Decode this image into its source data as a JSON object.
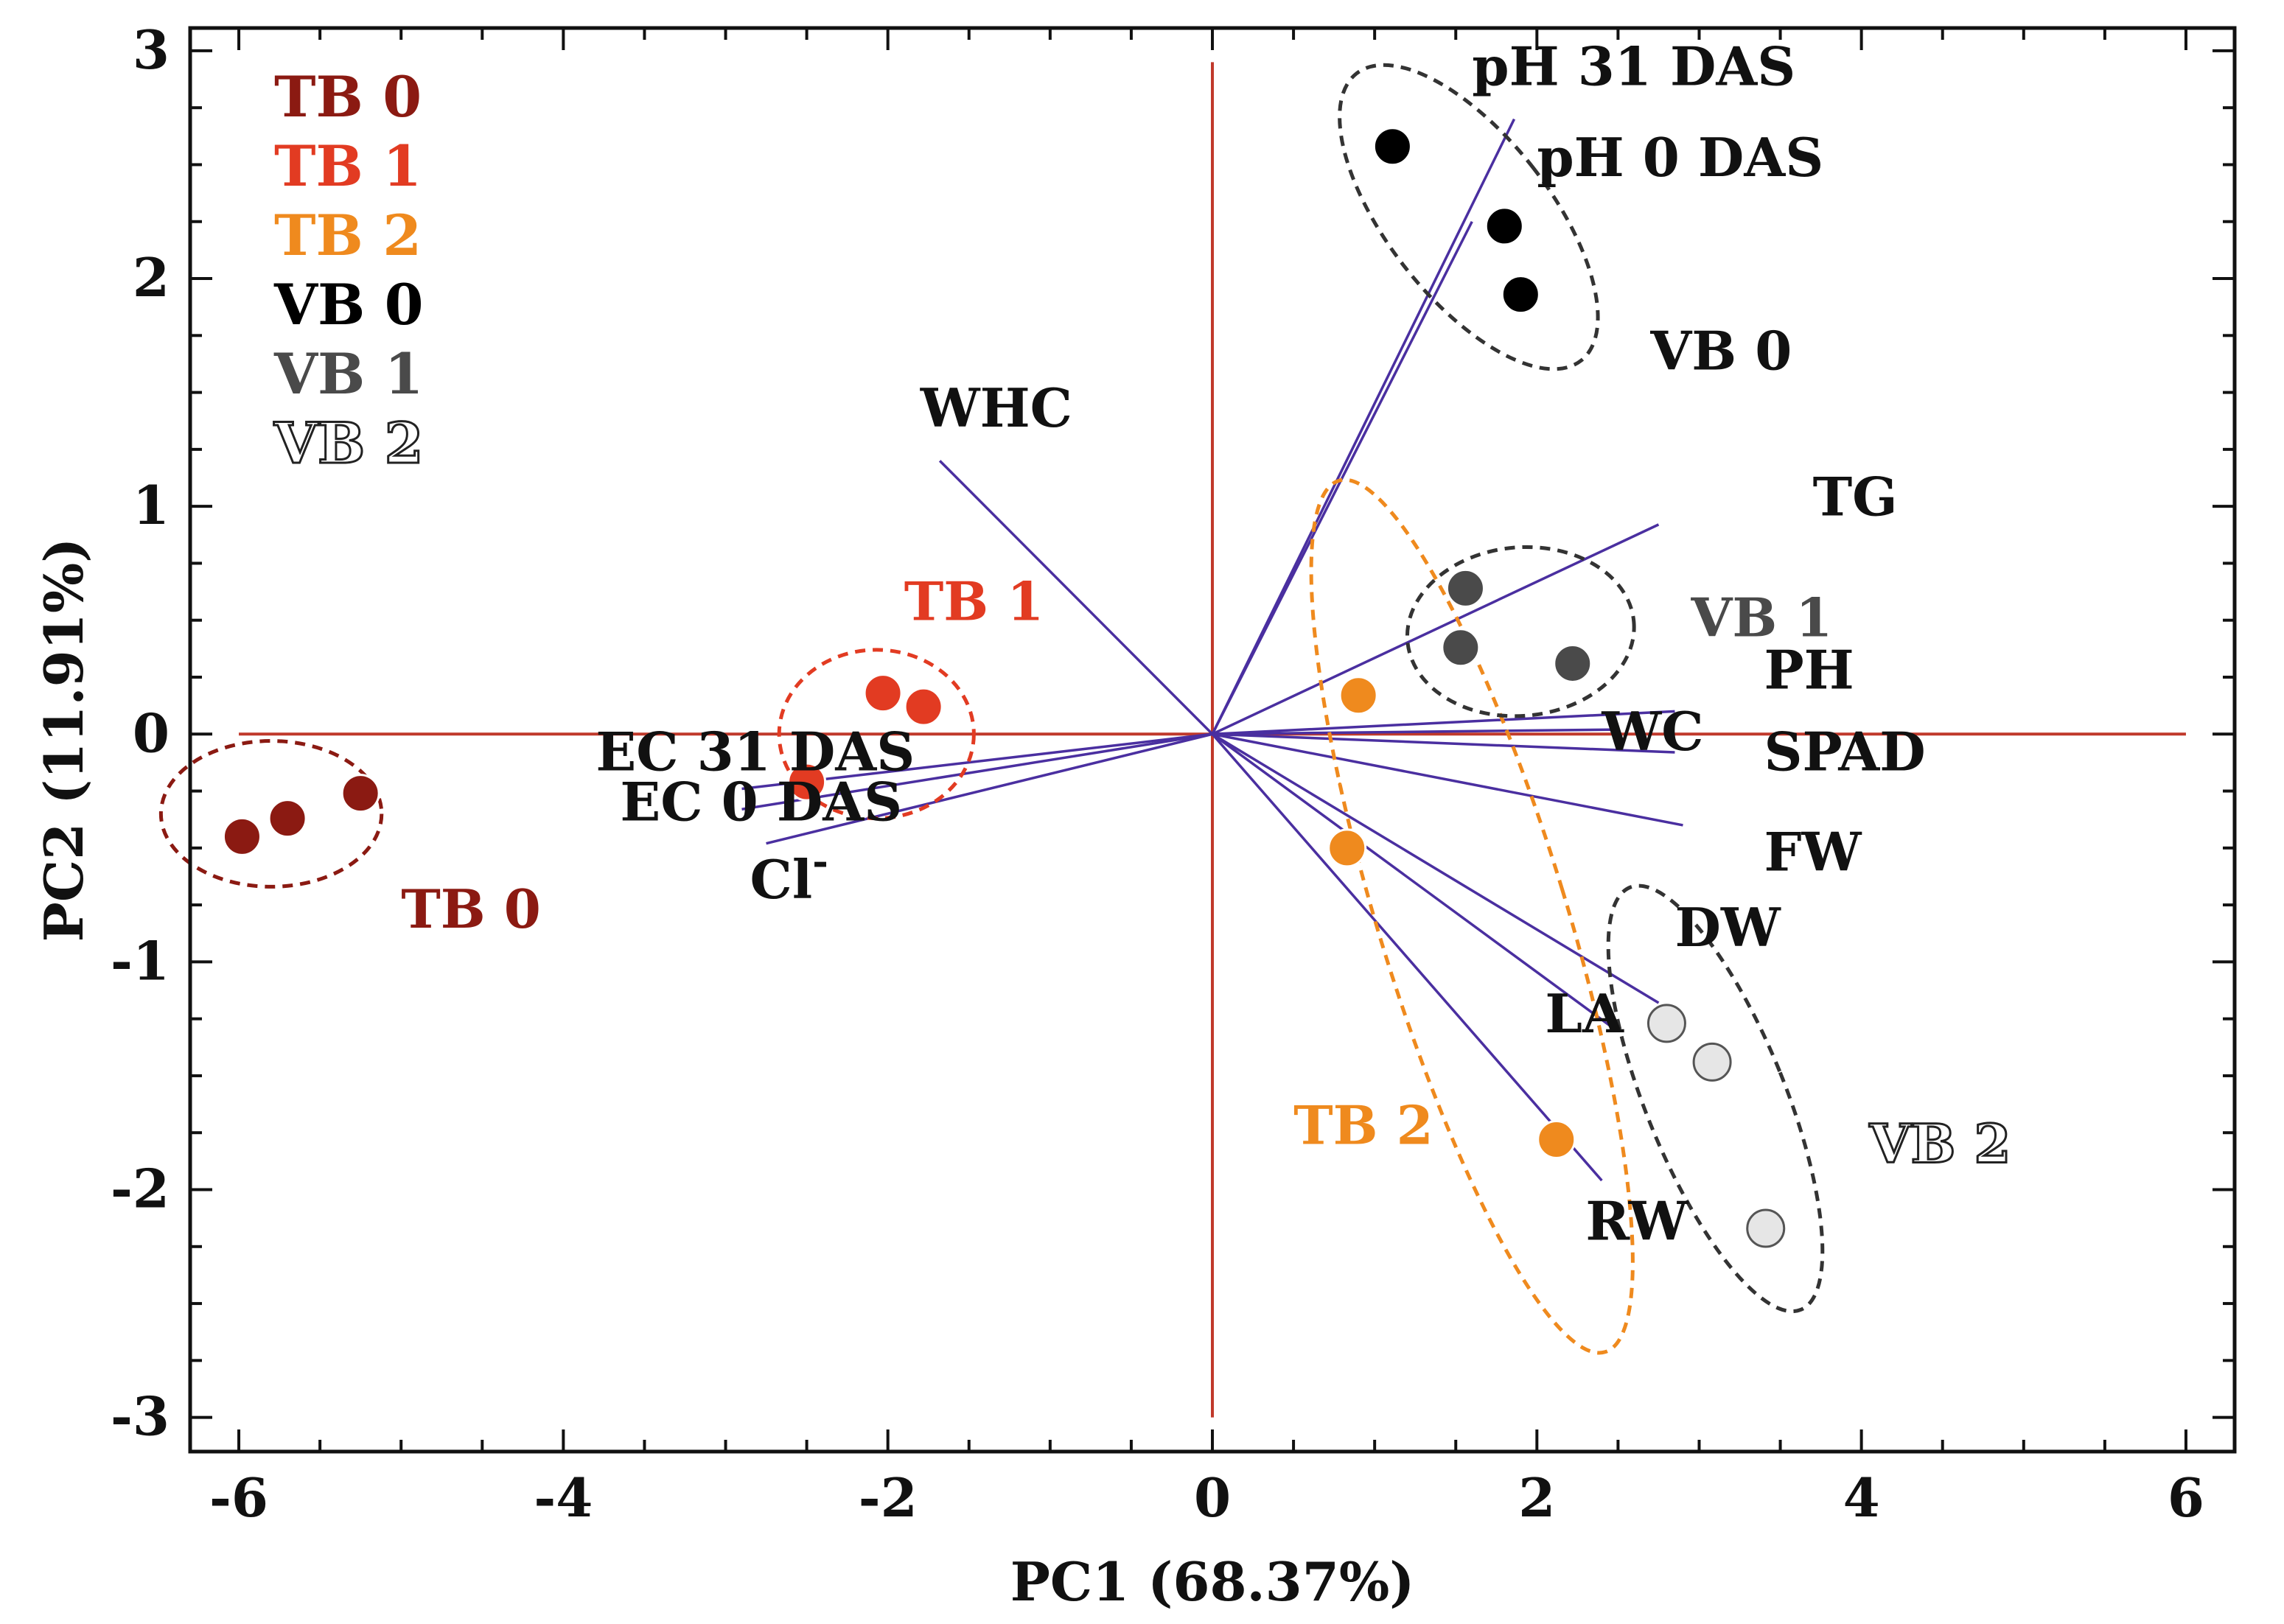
{
  "chart_data": {
    "type": "scatter",
    "subtype": "pca-biplot",
    "title": "",
    "xlabel": "PC1 (68.37%)",
    "ylabel": "PC2 (11.91%)",
    "xlim": [
      -6.3,
      6.3
    ],
    "ylim": [
      -3.15,
      3.1
    ],
    "xticks": [
      -6,
      -4,
      -2,
      0,
      2,
      4,
      6
    ],
    "yticks": [
      -3,
      -2,
      -1,
      0,
      1,
      2,
      3
    ],
    "grid": false,
    "legend_position": "top-left",
    "legend": [
      {
        "label": "TB 0",
        "color": "#8b1a12",
        "style": "filled"
      },
      {
        "label": "TB 1",
        "color": "#e23b22",
        "style": "filled"
      },
      {
        "label": "TB 2",
        "color": "#ef8a1e",
        "style": "filled"
      },
      {
        "label": "VB 0",
        "color": "#000000",
        "style": "filled"
      },
      {
        "label": "VB 1",
        "color": "#4a4a4a",
        "style": "filled"
      },
      {
        "label": "VB 2",
        "color": "#ffffff",
        "style": "outline"
      }
    ],
    "groups": [
      {
        "name": "TB 0",
        "color": "#8b1a12",
        "fill": "#8b1a12",
        "points": [
          [
            -5.98,
            -0.45
          ],
          [
            -5.7,
            -0.37
          ],
          [
            -5.25,
            -0.26
          ]
        ],
        "ellipse": {
          "cx": -5.8,
          "cy": -0.35,
          "rx": 0.68,
          "ry": 0.32,
          "angle": 0
        },
        "label": "TB 0",
        "label_at": [
          -5.0,
          -0.85
        ]
      },
      {
        "name": "TB 1",
        "color": "#e23b22",
        "fill": "#e23b22",
        "points": [
          [
            -2.5,
            -0.21
          ],
          [
            -2.03,
            0.18
          ],
          [
            -1.78,
            0.12
          ]
        ],
        "ellipse": {
          "cx": -2.07,
          "cy": 0.0,
          "rx": 0.6,
          "ry": 0.37,
          "angle": 0
        },
        "label": "TB 1",
        "label_at": [
          -1.9,
          0.5
        ]
      },
      {
        "name": "TB 2",
        "color": "#ef8a1e",
        "fill": "#ef8a1e",
        "points": [
          [
            0.9,
            0.17
          ],
          [
            0.83,
            -0.5
          ],
          [
            2.12,
            -1.78
          ]
        ],
        "ellipse": {
          "cx": 1.6,
          "cy": -0.8,
          "rx": 0.58,
          "ry": 2.0,
          "angle": -17
        },
        "label": "TB 2",
        "label_at": [
          0.5,
          -1.8
        ]
      },
      {
        "name": "VB 0",
        "color": "#000000",
        "fill": "#000000",
        "points": [
          [
            1.11,
            2.58
          ],
          [
            1.8,
            2.23
          ],
          [
            1.9,
            1.93
          ]
        ],
        "ellipse": {
          "cx": 1.58,
          "cy": 2.27,
          "rx": 0.5,
          "ry": 0.8,
          "angle": -38
        },
        "label": "VB 0",
        "label_at": [
          2.7,
          1.6
        ]
      },
      {
        "name": "VB 1",
        "color": "#4a4a4a",
        "fill": "#4a4a4a",
        "points": [
          [
            1.56,
            0.64
          ],
          [
            1.53,
            0.38
          ],
          [
            2.22,
            0.31
          ]
        ],
        "ellipse": {
          "cx": 1.9,
          "cy": 0.45,
          "rx": 0.7,
          "ry": 0.37,
          "angle": -5
        },
        "label": "VB 1",
        "label_at": [
          2.95,
          0.43
        ]
      },
      {
        "name": "VB 2",
        "color": "#777777",
        "fill": "#e6e6e6",
        "points": [
          [
            2.8,
            -1.27
          ],
          [
            3.08,
            -1.44
          ],
          [
            3.41,
            -2.17
          ]
        ],
        "ellipse": {
          "cx": 3.1,
          "cy": -1.6,
          "rx": 0.43,
          "ry": 1.0,
          "angle": -22
        },
        "label": "VB 2",
        "label_at": [
          4.05,
          -1.88
        ]
      }
    ],
    "loadings": [
      {
        "label": "pH 31 DAS",
        "end": [
          1.86,
          2.7
        ],
        "label_at": [
          1.6,
          2.85
        ]
      },
      {
        "label": "pH 0 DAS",
        "end": [
          1.6,
          2.25
        ],
        "label_at": [
          2.0,
          2.45
        ]
      },
      {
        "label": "WHC",
        "end": [
          -1.68,
          1.2
        ],
        "label_at": [
          -1.8,
          1.35
        ]
      },
      {
        "label": "TG",
        "end": [
          2.75,
          0.92
        ],
        "label_at": [
          3.7,
          0.96
        ]
      },
      {
        "label": "PH",
        "end": [
          2.85,
          0.1
        ],
        "label_at": [
          3.4,
          0.2
        ]
      },
      {
        "label": "WC",
        "end": [
          2.5,
          0.02
        ],
        "label_at": [
          2.4,
          -0.07
        ]
      },
      {
        "label": "SPAD",
        "end": [
          2.85,
          -0.08
        ],
        "label_at": [
          3.4,
          -0.16
        ]
      },
      {
        "label": "FW",
        "end": [
          2.9,
          -0.4
        ],
        "label_at": [
          3.4,
          -0.6
        ]
      },
      {
        "label": "DW",
        "end": [
          2.75,
          -1.18
        ],
        "label_at": [
          2.85,
          -0.93
        ]
      },
      {
        "label": "LA",
        "end": [
          2.45,
          -1.28
        ],
        "label_at": [
          2.05,
          -1.31
        ]
      },
      {
        "label": "RW",
        "end": [
          2.4,
          -1.96
        ],
        "label_at": [
          2.3,
          -2.22
        ]
      },
      {
        "label": "EC 31 DAS",
        "end": [
          -2.9,
          -0.24
        ],
        "label_at": [
          -3.8,
          -0.16
        ]
      },
      {
        "label": "EC 0 DAS",
        "end": [
          -2.9,
          -0.33
        ],
        "label_at": [
          -3.65,
          -0.38
        ]
      },
      {
        "label": "Cl",
        "label_sup": "-",
        "end": [
          -2.75,
          -0.48
        ],
        "label_at": [
          -2.85,
          -0.72
        ]
      }
    ],
    "colors": {
      "axis_lines": "#c0392b",
      "loading_lines": "#4a2fa0",
      "text": "#111111"
    }
  }
}
